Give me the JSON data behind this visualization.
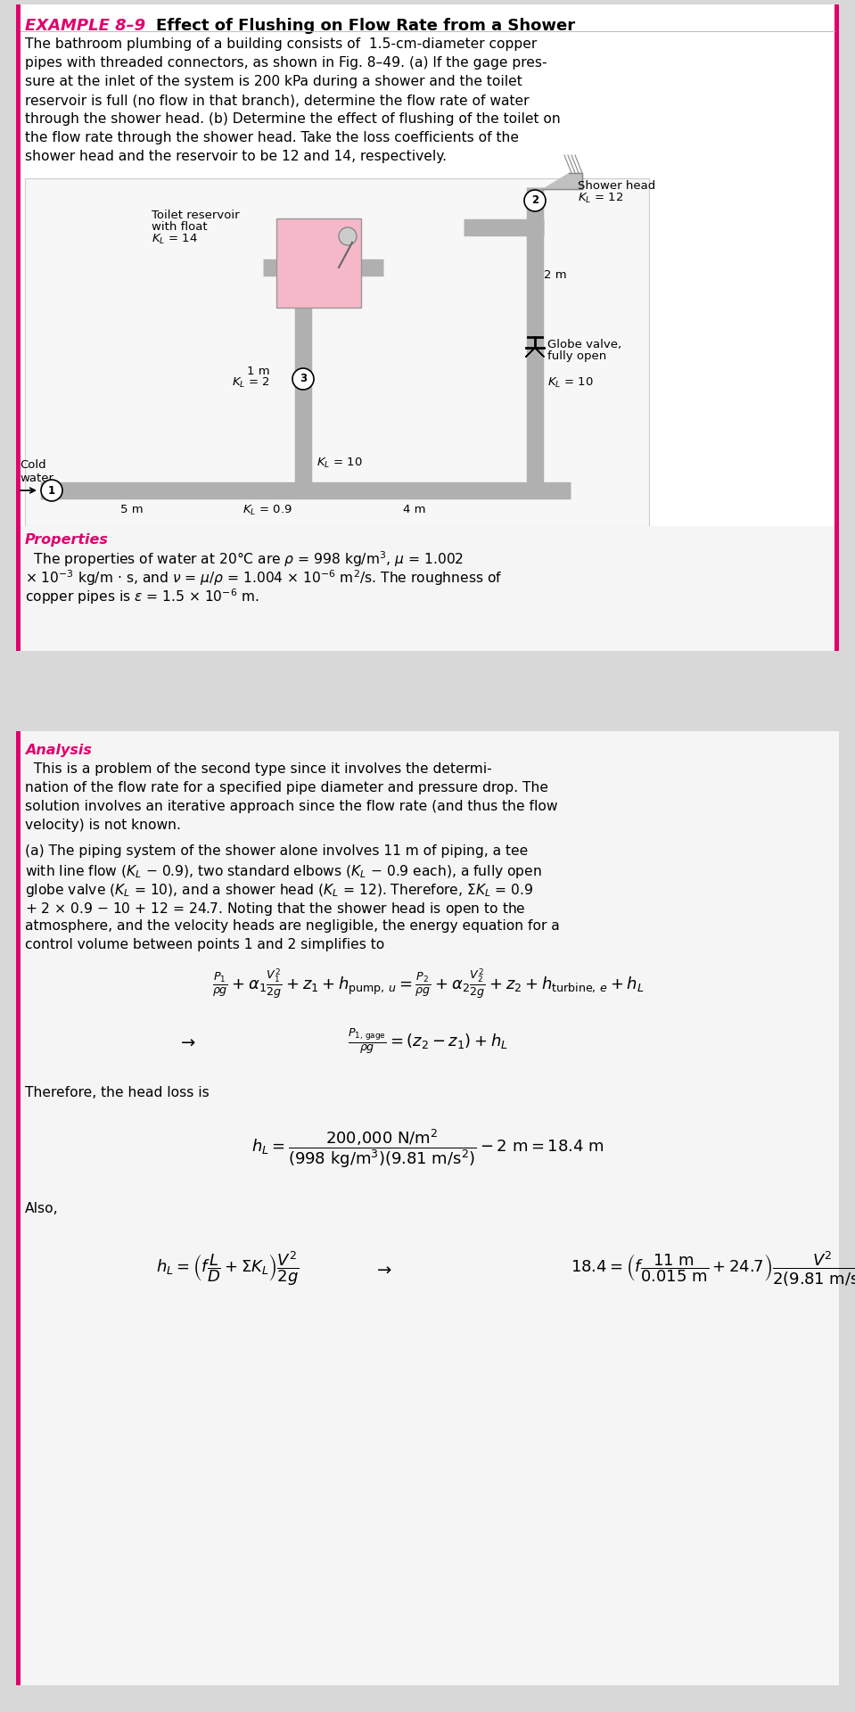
{
  "bg_color": "#d8d8d8",
  "box1_bg": "#ffffff",
  "box2_bg": "#f0f0f0",
  "accent_color": "#e0006e",
  "title_italic": "EXAMPLE 8–9",
  "title_bold": "    Effect of Flushing on Flow Rate from a Shower"
}
